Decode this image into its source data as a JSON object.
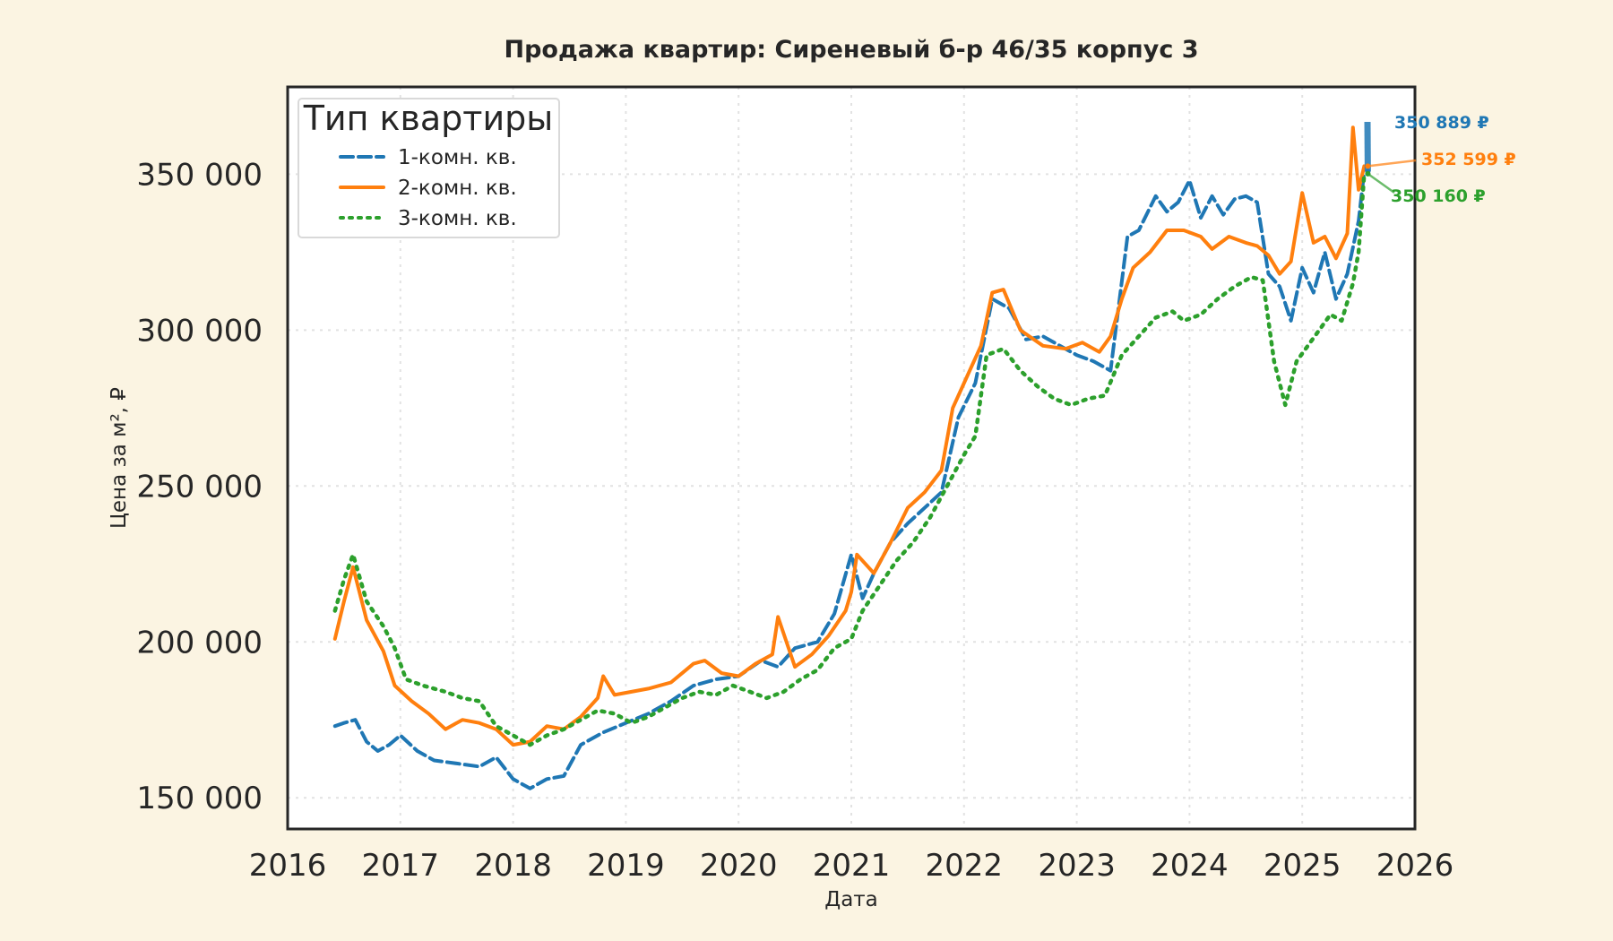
{
  "chart_data": {
    "type": "line",
    "title": "Продажа квартир: Сиреневый б-р 46/35 корпус 3",
    "xlabel": "Дата",
    "ylabel": "Цена за м², ₽",
    "xlim": [
      2016.0,
      2026.0
    ],
    "ylim": [
      140000,
      378000
    ],
    "x_ticks": [
      "2016",
      "2017",
      "2018",
      "2019",
      "2020",
      "2021",
      "2022",
      "2023",
      "2024",
      "2025",
      "2026"
    ],
    "x_tick_values": [
      2016,
      2017,
      2018,
      2019,
      2020,
      2021,
      2022,
      2023,
      2024,
      2025,
      2026
    ],
    "y_ticks": [
      "150 000",
      "200 000",
      "250 000",
      "300 000",
      "350 000"
    ],
    "y_tick_values": [
      150000,
      200000,
      250000,
      300000,
      350000
    ],
    "grid": true,
    "legend": {
      "title": "Тип квартиры",
      "placement": "top-left"
    },
    "series": [
      {
        "name": "1-комн. кв.",
        "color": "#1f77b4",
        "dash": "dashed",
        "x": [
          2016.42,
          2016.5,
          2016.6,
          2016.7,
          2016.8,
          2016.9,
          2017.0,
          2017.15,
          2017.3,
          2017.5,
          2017.7,
          2017.85,
          2018.0,
          2018.15,
          2018.3,
          2018.45,
          2018.6,
          2018.8,
          2019.0,
          2019.2,
          2019.4,
          2019.6,
          2019.8,
          2020.0,
          2020.2,
          2020.35,
          2020.5,
          2020.7,
          2020.85,
          2021.0,
          2021.1,
          2021.2,
          2021.35,
          2021.5,
          2021.65,
          2021.8,
          2021.95,
          2022.1,
          2022.25,
          2022.4,
          2022.55,
          2022.7,
          2022.85,
          2023.0,
          2023.15,
          2023.3,
          2023.45,
          2023.55,
          2023.7,
          2023.8,
          2023.9,
          2024.0,
          2024.1,
          2024.2,
          2024.3,
          2024.4,
          2024.5,
          2024.6,
          2024.7,
          2024.8,
          2024.9,
          2025.0,
          2025.1,
          2025.2,
          2025.3,
          2025.4,
          2025.5,
          2025.55
        ],
        "y": [
          173000,
          174000,
          175000,
          168000,
          165000,
          167000,
          170000,
          165000,
          162000,
          161000,
          160000,
          163000,
          156000,
          153000,
          156000,
          157000,
          167000,
          171000,
          174000,
          177000,
          181000,
          186000,
          188000,
          189000,
          194000,
          192000,
          198000,
          200000,
          209000,
          228000,
          214000,
          222000,
          232000,
          238000,
          243000,
          248000,
          272000,
          283000,
          310000,
          307000,
          297000,
          298000,
          295000,
          292000,
          290000,
          287000,
          330000,
          332000,
          343000,
          338000,
          341000,
          348000,
          336000,
          343000,
          337000,
          342000,
          343000,
          341000,
          318000,
          314000,
          303000,
          320000,
          312000,
          325000,
          310000,
          318000,
          335000,
          350889
        ]
      },
      {
        "name": "2-комн. кв.",
        "color": "#ff7f0e",
        "dash": "solid",
        "x": [
          2016.42,
          2016.5,
          2016.58,
          2016.7,
          2016.85,
          2016.95,
          2017.1,
          2017.25,
          2017.4,
          2017.55,
          2017.7,
          2017.85,
          2018.0,
          2018.15,
          2018.3,
          2018.45,
          2018.6,
          2018.75,
          2018.8,
          2018.9,
          2019.05,
          2019.2,
          2019.4,
          2019.6,
          2019.7,
          2019.85,
          2020.0,
          2020.15,
          2020.3,
          2020.35,
          2020.5,
          2020.65,
          2020.8,
          2020.95,
          2021.0,
          2021.05,
          2021.2,
          2021.35,
          2021.5,
          2021.65,
          2021.8,
          2021.9,
          2022.0,
          2022.15,
          2022.25,
          2022.35,
          2022.5,
          2022.7,
          2022.9,
          2023.05,
          2023.2,
          2023.3,
          2023.4,
          2023.5,
          2023.65,
          2023.8,
          2023.95,
          2024.1,
          2024.2,
          2024.35,
          2024.5,
          2024.6,
          2024.7,
          2024.8,
          2024.9,
          2025.0,
          2025.1,
          2025.2,
          2025.3,
          2025.4,
          2025.45,
          2025.5,
          2025.55
        ],
        "y": [
          201000,
          213000,
          224000,
          207000,
          197000,
          186000,
          181000,
          177000,
          172000,
          175000,
          174000,
          172000,
          167000,
          168000,
          173000,
          172000,
          176000,
          182000,
          189000,
          183000,
          184000,
          185000,
          187000,
          193000,
          194000,
          190000,
          189000,
          193000,
          196000,
          208000,
          192000,
          196000,
          202000,
          210000,
          216000,
          228000,
          222000,
          232000,
          243000,
          248000,
          255000,
          275000,
          283000,
          295000,
          312000,
          313000,
          300000,
          295000,
          294000,
          296000,
          293000,
          298000,
          310000,
          320000,
          325000,
          332000,
          332000,
          330000,
          326000,
          330000,
          328000,
          327000,
          324000,
          318000,
          322000,
          344000,
          328000,
          330000,
          323000,
          331000,
          365000,
          345000,
          352599
        ]
      },
      {
        "name": "3-комн. кв.",
        "color": "#2ca02c",
        "dash": "dotted",
        "x": [
          2016.42,
          2016.5,
          2016.58,
          2016.7,
          2016.85,
          2016.95,
          2017.05,
          2017.2,
          2017.4,
          2017.55,
          2017.7,
          2017.85,
          2018.0,
          2018.15,
          2018.3,
          2018.45,
          2018.6,
          2018.75,
          2018.9,
          2019.05,
          2019.2,
          2019.35,
          2019.5,
          2019.65,
          2019.8,
          2019.95,
          2020.1,
          2020.25,
          2020.4,
          2020.55,
          2020.7,
          2020.85,
          2021.0,
          2021.1,
          2021.25,
          2021.4,
          2021.55,
          2021.7,
          2021.85,
          2022.0,
          2022.1,
          2022.2,
          2022.35,
          2022.5,
          2022.65,
          2022.8,
          2022.95,
          2023.1,
          2023.25,
          2023.4,
          2023.55,
          2023.7,
          2023.85,
          2023.95,
          2024.1,
          2024.25,
          2024.4,
          2024.55,
          2024.65,
          2024.75,
          2024.85,
          2024.95,
          2025.05,
          2025.15,
          2025.25,
          2025.35,
          2025.45,
          2025.5,
          2025.55
        ],
        "y": [
          210000,
          220000,
          228000,
          213000,
          205000,
          198000,
          188000,
          186000,
          184000,
          182000,
          181000,
          173000,
          170000,
          167000,
          170000,
          172000,
          175000,
          178000,
          177000,
          174000,
          176000,
          179000,
          182000,
          184000,
          183000,
          186000,
          184000,
          182000,
          184000,
          188000,
          191000,
          198000,
          201000,
          210000,
          218000,
          226000,
          232000,
          240000,
          250000,
          260000,
          266000,
          292000,
          294000,
          287000,
          282000,
          278000,
          276000,
          278000,
          279000,
          292000,
          298000,
          304000,
          306000,
          303000,
          305000,
          310000,
          314000,
          317000,
          316000,
          290000,
          276000,
          290000,
          295000,
          300000,
          305000,
          303000,
          315000,
          325000,
          350160
        ]
      }
    ],
    "annotations": [
      {
        "series": "1-комн. кв.",
        "text": "350 889 ₽",
        "color": "#1f77b4"
      },
      {
        "series": "2-комн. кв.",
        "text": "352 599 ₽",
        "color": "#ff7f0e"
      },
      {
        "series": "3-комн. кв.",
        "text": "350 160 ₽",
        "color": "#2ca02c"
      }
    ]
  }
}
